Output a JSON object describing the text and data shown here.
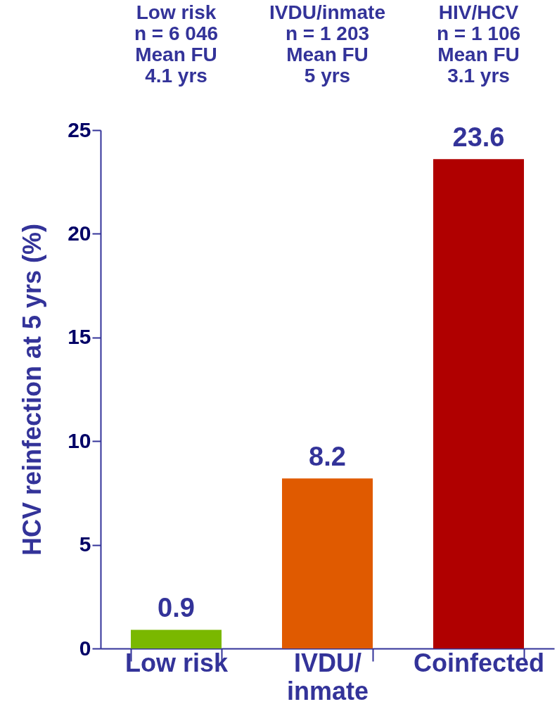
{
  "chart_data": {
    "type": "bar",
    "ylabel": "HCV reinfection  at 5 yrs (%)",
    "categories": [
      "Low risk",
      "IVDU/\ninmate",
      "Coinfected"
    ],
    "values": [
      0.9,
      8.2,
      23.6
    ],
    "colors": [
      "#7ab800",
      "#e05a00",
      "#b00000"
    ],
    "ylim": [
      0,
      25
    ],
    "yticks": [
      0,
      5,
      10,
      15,
      20,
      25
    ],
    "grid": false,
    "data_labels": true,
    "annotations": [
      "Low risk\nn = 6 046\nMean FU\n4.1 yrs",
      "IVDU/inmate\nn = 1 203\nMean FU\n5 yrs",
      "HIV/HCV\nn = 1 106\nMean FU\n3.1 yrs"
    ]
  }
}
